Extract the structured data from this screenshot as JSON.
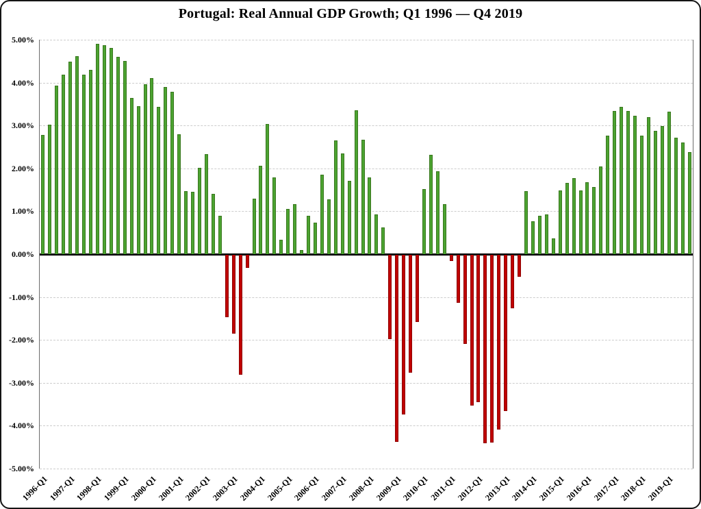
{
  "chart_data": {
    "type": "bar",
    "title": "Portugal: Real Annual GDP Growth; Q1 1996 — Q4 2019",
    "ylabel": "",
    "xlabel": "",
    "ylim": [
      -5,
      5
    ],
    "grid": "horizontal dashed, zero axis solid black",
    "legend": "none",
    "y_tick_labels": [
      "5.00%",
      "4.00%",
      "3.00%",
      "2.00%",
      "1.00%",
      "0.00%",
      "-1.00%",
      "-2.00%",
      "-3.00%",
      "-4.00%",
      "-5.00%"
    ],
    "x_tick_labels": [
      "1996-Q1",
      "1997-Q1",
      "1998-Q1",
      "1999-Q1",
      "2000-Q1",
      "2001-Q1",
      "2002-Q1",
      "2003-Q1",
      "2004-Q1",
      "2005-Q1",
      "2006-Q1",
      "2007-Q1",
      "2008-Q1",
      "2009-Q1",
      "2010-Q1",
      "2011-Q1",
      "2012-Q1",
      "2013-Q1",
      "2014-Q1",
      "2015-Q1",
      "2016-Q1",
      "2017-Q1",
      "2018-Q1",
      "2019-Q1"
    ],
    "x_tick_every_n_bars": 4,
    "quarters_per_year": 4,
    "first_quarter": "1996-Q1",
    "last_quarter": "2019-Q4",
    "values": [
      2.78,
      3.02,
      3.93,
      4.19,
      4.49,
      4.62,
      4.19,
      4.3,
      4.9,
      4.88,
      4.81,
      4.6,
      4.51,
      3.64,
      3.45,
      3.96,
      4.1,
      3.44,
      3.9,
      3.78,
      2.79,
      1.47,
      1.45,
      2.02,
      2.33,
      1.41,
      0.9,
      -1.46,
      -1.84,
      -2.79,
      -0.3,
      1.29,
      2.06,
      3.03,
      1.79,
      0.33,
      1.05,
      1.16,
      0.09,
      0.9,
      0.73,
      1.85,
      1.28,
      2.65,
      2.35,
      1.71,
      3.35,
      2.66,
      1.79,
      0.92,
      0.62,
      -1.96,
      -4.36,
      -3.72,
      -2.74,
      -1.56,
      1.52,
      2.32,
      1.93,
      1.17,
      -0.14,
      -1.12,
      -2.07,
      -3.51,
      -3.43,
      -4.39,
      -4.37,
      -4.07,
      -3.64,
      -1.24,
      -0.51,
      1.47,
      0.77,
      0.89,
      0.93,
      0.36,
      1.48,
      1.66,
      1.77,
      1.48,
      1.68,
      1.57,
      2.04,
      2.76,
      3.34,
      3.43,
      3.34,
      3.22,
      2.76,
      3.19,
      2.87,
      2.98,
      3.32,
      2.72,
      2.61,
      2.38
    ],
    "colors": {
      "positive_fill": "#4CA331",
      "positive_border": "#38761D",
      "negative_fill": "#C00000",
      "negative_border": "#8F0000",
      "zero_line": "#000000",
      "gridline": "#cccccc",
      "background": "#ffffff",
      "frame_border": "#141414"
    }
  }
}
